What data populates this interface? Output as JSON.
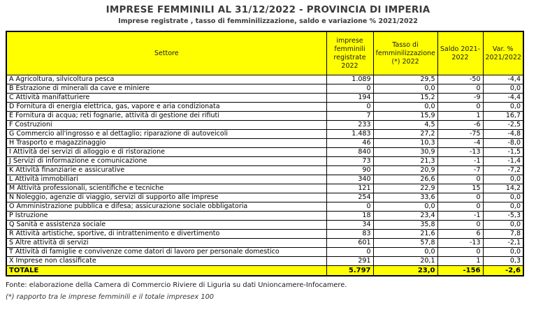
{
  "header": {
    "title": "IMPRESE FEMMINILI AL 31/12/2022 - PROVINCIA DI IMPERIA",
    "subtitle": "Imprese registrate , tasso di femminilizzazione, saldo e variazione % 2021/2022"
  },
  "colors": {
    "header_background": "#ffff00",
    "total_row_background": "#ffff00",
    "border": "#000000",
    "title_text": "#3b3b3b"
  },
  "table": {
    "headers": [
      "Settore",
      "imprese femminili registrate 2022",
      "Tasso di femminilizzazione (*) 2022",
      "Saldo 2021-2022",
      "Var. % 2021/2022"
    ],
    "rows": [
      {
        "label": "A Agricoltura, silvicoltura pesca",
        "values": [
          "1.089",
          "29,5",
          "-50",
          "-4,4"
        ]
      },
      {
        "label": "B Estrazione di minerali da cave e miniere",
        "values": [
          "0",
          "0,0",
          "0",
          "0,0"
        ]
      },
      {
        "label": "C Attività manifatturiere",
        "values": [
          "194",
          "15,2",
          "-9",
          "-4,4"
        ]
      },
      {
        "label": "D Fornitura di energia elettrica, gas, vapore e aria condizionata",
        "values": [
          "0",
          "0,0",
          "0",
          "0,0"
        ]
      },
      {
        "label": "E Fornitura di acqua; reti fognarie, attività di gestione dei rifiuti",
        "values": [
          "7",
          "15,9",
          "1",
          "16,7"
        ]
      },
      {
        "label": "F Costruzioni",
        "values": [
          "233",
          "4,5",
          "-6",
          "-2,5"
        ]
      },
      {
        "label": "G Commercio all'ingrosso e al dettaglio; riparazione di autoveicoli",
        "values": [
          "1.483",
          "27,2",
          "-75",
          "-4,8"
        ]
      },
      {
        "label": "H Trasporto e magazzinaggio",
        "values": [
          "46",
          "10,3",
          "-4",
          "-8,0"
        ]
      },
      {
        "label": "I Attività dei servizi di alloggio e di ristorazione",
        "values": [
          "840",
          "30,9",
          "-13",
          "-1,5"
        ]
      },
      {
        "label": "J Servizi di informazione e comunicazione",
        "values": [
          "73",
          "21,3",
          "-1",
          "-1,4"
        ]
      },
      {
        "label": "K Attività finanziarie e assicurative",
        "values": [
          "90",
          "20,9",
          "-7",
          "-7,2"
        ]
      },
      {
        "label": "L Attività immobiliari",
        "values": [
          "340",
          "26,6",
          "0",
          "0,0"
        ]
      },
      {
        "label": "M Attività professionali, scientifiche e tecniche",
        "values": [
          "121",
          "22,9",
          "15",
          "14,2"
        ]
      },
      {
        "label": "N Noleggio, agenzie di viaggio, servizi di supporto alle imprese",
        "values": [
          "254",
          "33,6",
          "0",
          "0,0"
        ]
      },
      {
        "label": "O Amministrazione pubblica e difesa; assicurazione sociale obbligatoria",
        "values": [
          "0",
          "0,0",
          "0",
          "0,0"
        ]
      },
      {
        "label": "P Istruzione",
        "values": [
          "18",
          "23,4",
          "-1",
          "-5,3"
        ]
      },
      {
        "label": "Q Sanità e assistenza sociale",
        "values": [
          "34",
          "35,8",
          "0",
          "0,0"
        ]
      },
      {
        "label": "R Attività artistiche, sportive, di intrattenimento e divertimento",
        "values": [
          "83",
          "21,6",
          "6",
          "7,8"
        ]
      },
      {
        "label": "S Altre attività di servizi",
        "values": [
          "601",
          "57,8",
          "-13",
          "-2,1"
        ]
      },
      {
        "label": "T Attività di famiglie e convivenze come datori di lavoro per personale domestico",
        "values": [
          "0",
          "0,0",
          "0",
          "0,0"
        ]
      },
      {
        "label": "X Imprese non classificate",
        "values": [
          "291",
          "20,1",
          "1",
          "0,3"
        ]
      }
    ],
    "total": {
      "label": "TOTALE",
      "values": [
        "5.797",
        "23,0",
        "-156",
        "-2,6"
      ]
    }
  },
  "footer": {
    "source": "Fonte: elaborazione della Camera di Commercio Riviere di Liguria su dati Unioncamere-Infocamere.",
    "footnote": "(*) rapporto tra le imprese femminili e il totale impresex 100"
  }
}
